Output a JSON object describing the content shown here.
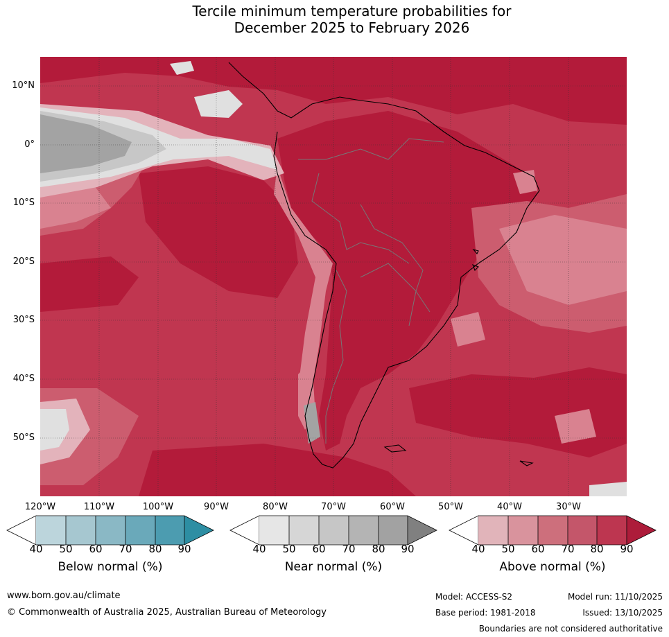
{
  "title": {
    "line1": "Tercile minimum temperature probabilities for",
    "line2": "December 2025 to February 2026"
  },
  "map": {
    "latitude_labels": [
      "10°N",
      "0°",
      "10°S",
      "20°S",
      "30°S",
      "40°S",
      "50°S"
    ],
    "longitude_labels": [
      "120°W",
      "110°W",
      "100°W",
      "90°W",
      "80°W",
      "70°W",
      "60°W",
      "50°W",
      "40°W",
      "30°W"
    ],
    "colors": {
      "above_90": "#b31b3a",
      "above_80": "#c03650",
      "above_70": "#cc5d6f",
      "above_60": "#d98290",
      "above_50": "#e3b3bb",
      "near_90": "#a3a3a3",
      "near_70": "#c7c7c7",
      "near_50": "#e0e0e0",
      "coastline": "#000000",
      "borders": "#777777"
    }
  },
  "legend": {
    "below": {
      "label": "Below normal (%)",
      "ticks": [
        "40",
        "50",
        "60",
        "70",
        "80",
        "90"
      ],
      "colors": [
        "#ffffff",
        "#bcd5dc",
        "#a6c7d0",
        "#8ab8c5",
        "#6aa9ba",
        "#4c9cb0",
        "#2d8ea3"
      ]
    },
    "near": {
      "label": "Near normal (%)",
      "ticks": [
        "40",
        "50",
        "60",
        "70",
        "80",
        "90"
      ],
      "colors": [
        "#ffffff",
        "#e6e6e6",
        "#d6d6d6",
        "#c6c6c6",
        "#b4b4b4",
        "#a2a2a2",
        "#808080"
      ]
    },
    "above": {
      "label": "Above normal (%)",
      "ticks": [
        "40",
        "50",
        "60",
        "70",
        "80",
        "90"
      ],
      "colors": [
        "#ffffff",
        "#e1b4ba",
        "#d9939d",
        "#cd6f7c",
        "#c4566a",
        "#bd3650",
        "#ad1c3a"
      ]
    }
  },
  "footer": {
    "website": "www.bom.gov.au/climate",
    "copyright": "© Commonwealth of Australia 2025, Australian Bureau of Meteorology",
    "model": "Model: ACCESS-S2",
    "model_run": "Model run: 11/10/2025",
    "base_period": "Base period: 1981-2018",
    "issued": "Issued: 13/10/2025",
    "disclaimer": "Boundaries are not considered authoritative"
  }
}
